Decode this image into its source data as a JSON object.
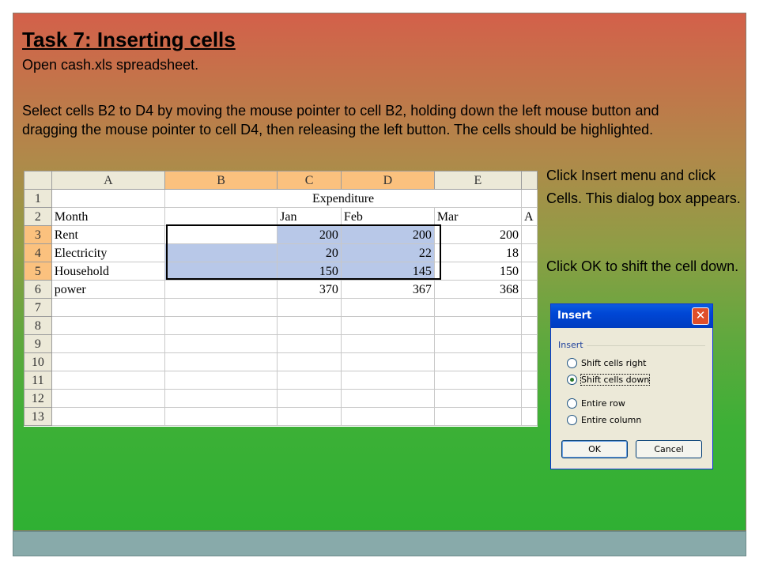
{
  "slide": {
    "title": "Task 7: Inserting cells",
    "open_line": "Open cash.xls spreadsheet.",
    "select_paragraph": "Select cells B2 to D4 by moving the mouse pointer to cell B2, holding down the left mouse button and dragging the mouse pointer to cell D4, then releasing the left button. The cells should be highlighted.",
    "right_text_1": "Click Insert menu and click Cells. This dialog box appears.",
    "right_text_2": "Click OK to shift the cell down."
  },
  "spreadsheet": {
    "columns": [
      "A",
      "B",
      "C",
      "D",
      "E"
    ],
    "rows": [
      {
        "num": "1",
        "a": "",
        "merged": "Expenditure"
      },
      {
        "num": "2",
        "a": "Month",
        "b": "",
        "c": "Jan",
        "d": "Feb",
        "e": "Mar",
        "f": "A"
      },
      {
        "num": "3",
        "a": "Rent",
        "b": "",
        "c": "200",
        "d": "200",
        "e": "200"
      },
      {
        "num": "4",
        "a": "Electricity",
        "b": "",
        "c": "20",
        "d": "22",
        "e": "18"
      },
      {
        "num": "5",
        "a": "Household",
        "b": "",
        "c": "150",
        "d": "145",
        "e": "150"
      },
      {
        "num": "6",
        "a": "power",
        "b": "",
        "c": "370",
        "d": "367",
        "e": "368"
      },
      {
        "num": "7"
      },
      {
        "num": "8"
      },
      {
        "num": "9"
      },
      {
        "num": "10"
      },
      {
        "num": "11"
      },
      {
        "num": "12"
      },
      {
        "num": "13"
      }
    ]
  },
  "dialog": {
    "title": "Insert",
    "close_glyph": "✕",
    "group_label": "Insert",
    "options": [
      {
        "label": "Shift cells right",
        "selected": false
      },
      {
        "label": "Shift cells down",
        "selected": true
      },
      {
        "label": "Entire row",
        "selected": false
      },
      {
        "label": "Entire column",
        "selected": false
      }
    ],
    "ok_label": "OK",
    "cancel_label": "Cancel"
  }
}
